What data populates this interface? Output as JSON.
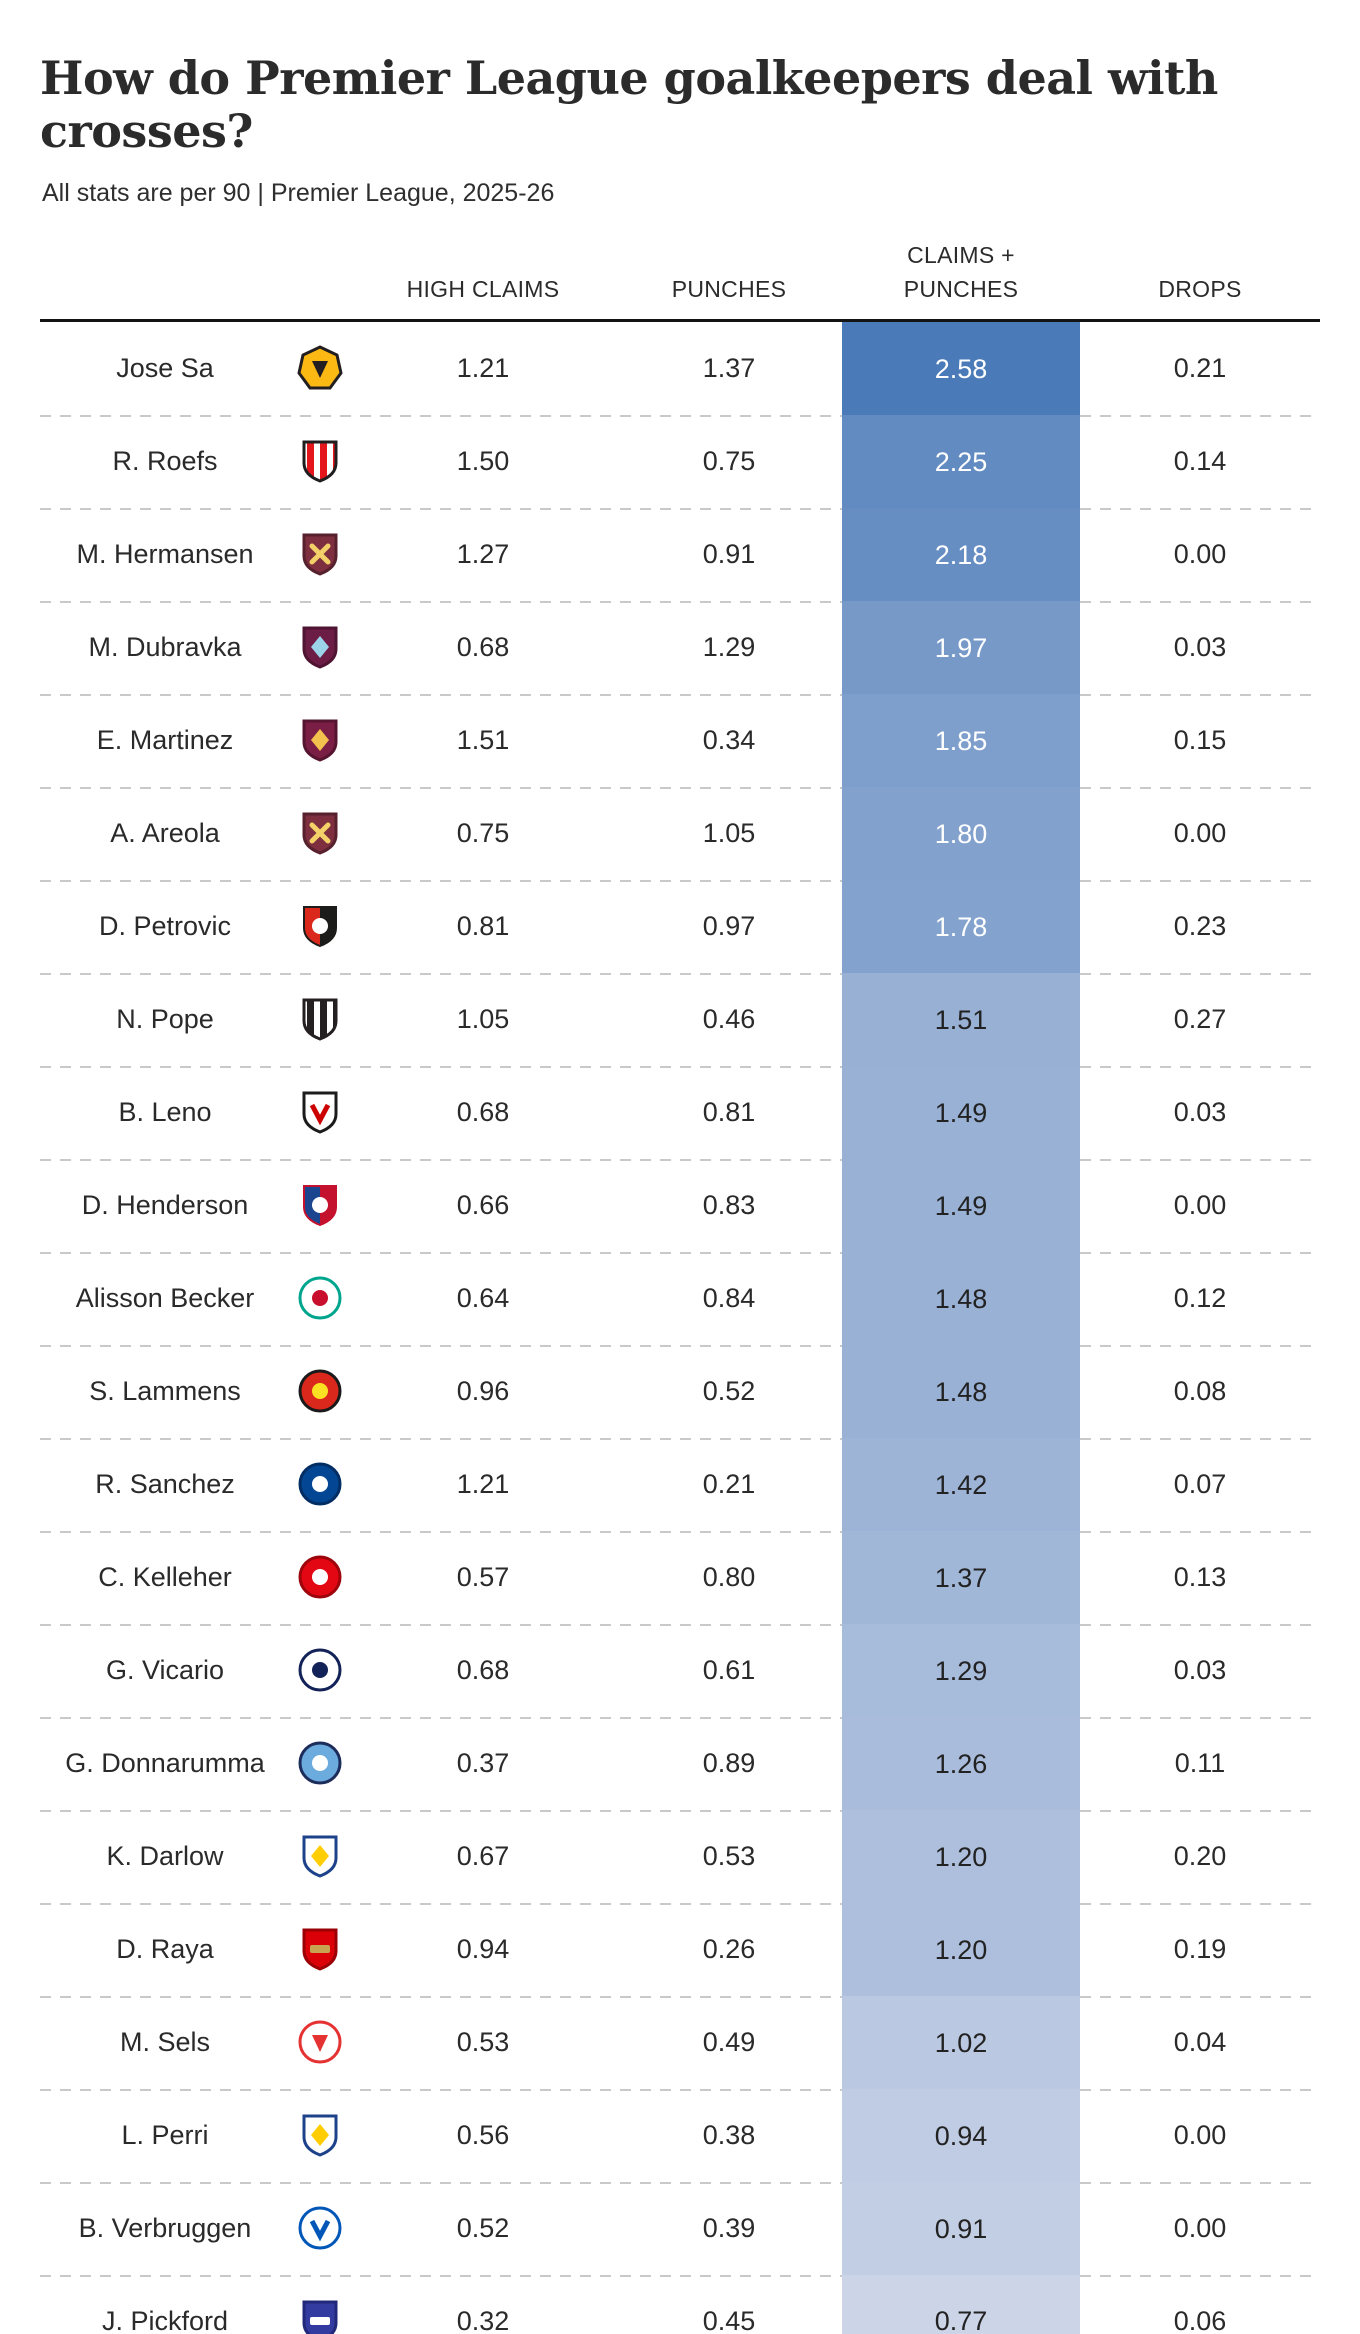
{
  "chart_data": {
    "type": "table",
    "title": "How do Premier League goalkeepers deal with crosses?",
    "subtitle": "All stats are per 90 | Premier League, 2025-26",
    "columns": [
      {
        "id": "high_claims",
        "label": "HIGH CLAIMS"
      },
      {
        "id": "punches",
        "label": "PUNCHES"
      },
      {
        "id": "claims_punches",
        "label": "CLAIMS + PUNCHES",
        "lines": [
          "CLAIMS +",
          "PUNCHES"
        ]
      },
      {
        "id": "drops",
        "label": "DROPS"
      }
    ],
    "highlight_scale": {
      "column": "claims_punches",
      "min_value": 0.77,
      "max_value": 2.58,
      "min_color": "#CCD5E8",
      "max_color": "#4A7AB8",
      "light_text": "#FFFFFF",
      "dark_text": "#222222"
    },
    "rows": [
      {
        "player": "Jose Sa",
        "club": "Wolverhampton Wanderers",
        "high_claims": "1.21",
        "punches": "1.37",
        "claims_punches": "2.58",
        "drops": "0.21",
        "badge": {
          "icon": "wolves-club-badge-icon",
          "kind": "hex",
          "colors": [
            "#FDB913",
            "#231F20",
            "#231F20"
          ],
          "emblem": "triangle"
        }
      },
      {
        "player": "R. Roefs",
        "club": "Sunderland",
        "high_claims": "1.50",
        "punches": "0.75",
        "claims_punches": "2.25",
        "drops": "0.14",
        "badge": {
          "icon": "sunderland-club-badge-icon",
          "kind": "stripes-shield",
          "colors": [
            "#FFFFFF",
            "#211E1F",
            "#E4161C"
          ],
          "emblem": "none"
        }
      },
      {
        "player": "M. Hermansen",
        "club": "West Ham United",
        "high_claims": "1.27",
        "punches": "0.91",
        "claims_punches": "2.18",
        "drops": "0.00",
        "badge": {
          "icon": "west-ham-club-badge-icon",
          "kind": "shield",
          "colors": [
            "#7D2F3F",
            "#56202d",
            "#F3D168"
          ],
          "emblem": "x"
        }
      },
      {
        "player": "M. Dubravka",
        "club": "Burnley",
        "high_claims": "0.68",
        "punches": "1.29",
        "claims_punches": "1.97",
        "drops": "0.03",
        "badge": {
          "icon": "burnley-club-badge-icon",
          "kind": "shield",
          "colors": [
            "#6C1D45",
            "#4f1432",
            "#9BD3E9"
          ],
          "emblem": "diamond"
        }
      },
      {
        "player": "E. Martinez",
        "club": "Aston Villa",
        "high_claims": "1.51",
        "punches": "0.34",
        "claims_punches": "1.85",
        "drops": "0.15",
        "badge": {
          "icon": "aston-villa-club-badge-icon",
          "kind": "shield",
          "colors": [
            "#7A1E45",
            "#551430",
            "#F2C14E"
          ],
          "emblem": "diamond"
        }
      },
      {
        "player": "A. Areola",
        "club": "West Ham United",
        "high_claims": "0.75",
        "punches": "1.05",
        "claims_punches": "1.80",
        "drops": "0.00",
        "badge": {
          "icon": "west-ham-club-badge-icon",
          "kind": "shield",
          "colors": [
            "#7D2F3F",
            "#56202d",
            "#F3D168"
          ],
          "emblem": "x"
        }
      },
      {
        "player": "D. Petrovic",
        "club": "AFC Bournemouth",
        "high_claims": "0.81",
        "punches": "0.97",
        "claims_punches": "1.78",
        "drops": "0.23",
        "badge": {
          "icon": "bournemouth-club-badge-icon",
          "kind": "split-shield",
          "colors": [
            "#DA291C",
            "#1C1C1B",
            "#FFFFFF"
          ],
          "emblem": "dot"
        }
      },
      {
        "player": "N. Pope",
        "club": "Newcastle United",
        "high_claims": "1.05",
        "punches": "0.46",
        "claims_punches": "1.51",
        "drops": "0.27",
        "badge": {
          "icon": "newcastle-club-badge-icon",
          "kind": "stripes-shield",
          "colors": [
            "#FFFFFF",
            "#241F21",
            "#241F21"
          ],
          "emblem": "none"
        }
      },
      {
        "player": "B. Leno",
        "club": "Fulham",
        "high_claims": "0.68",
        "punches": "0.81",
        "claims_punches": "1.49",
        "drops": "0.03",
        "badge": {
          "icon": "fulham-club-badge-icon",
          "kind": "shield",
          "colors": [
            "#FFFFFF",
            "#1B1B1B",
            "#CC0000"
          ],
          "emblem": "v"
        }
      },
      {
        "player": "D. Henderson",
        "club": "Crystal Palace",
        "high_claims": "0.66",
        "punches": "0.83",
        "claims_punches": "1.49",
        "drops": "0.00",
        "badge": {
          "icon": "crystal-palace-club-badge-icon",
          "kind": "split-shield",
          "colors": [
            "#1B458F",
            "#C4122E",
            "#FFFFFF"
          ],
          "emblem": "dot"
        }
      },
      {
        "player": "Alisson Becker",
        "club": "Liverpool",
        "high_claims": "0.64",
        "punches": "0.84",
        "claims_punches": "1.48",
        "drops": "0.12",
        "badge": {
          "icon": "liverpool-club-badge-icon",
          "kind": "circle",
          "colors": [
            "#FFFFFF",
            "#00A58E",
            "#C8102E"
          ],
          "emblem": "dot"
        }
      },
      {
        "player": "S. Lammens",
        "club": "Manchester United",
        "high_claims": "0.96",
        "punches": "0.52",
        "claims_punches": "1.48",
        "drops": "0.08",
        "badge": {
          "icon": "manchester-united-club-badge-icon",
          "kind": "circle",
          "colors": [
            "#DA291C",
            "#1A1A1A",
            "#FBE122"
          ],
          "emblem": "dot"
        }
      },
      {
        "player": "R. Sanchez",
        "club": "Chelsea",
        "high_claims": "1.21",
        "punches": "0.21",
        "claims_punches": "1.42",
        "drops": "0.07",
        "badge": {
          "icon": "chelsea-club-badge-icon",
          "kind": "circle",
          "colors": [
            "#034694",
            "#022E63",
            "#FFFFFF"
          ],
          "emblem": "dot"
        }
      },
      {
        "player": "C. Kelleher",
        "club": "Brentford",
        "high_claims": "0.57",
        "punches": "0.80",
        "claims_punches": "1.37",
        "drops": "0.13",
        "badge": {
          "icon": "brentford-club-badge-icon",
          "kind": "circle",
          "colors": [
            "#E30613",
            "#9E040C",
            "#FFFFFF"
          ],
          "emblem": "dot"
        }
      },
      {
        "player": "G. Vicario",
        "club": "Tottenham Hotspur",
        "high_claims": "0.68",
        "punches": "0.61",
        "claims_punches": "1.29",
        "drops": "0.03",
        "badge": {
          "icon": "tottenham-club-badge-icon",
          "kind": "circle",
          "colors": [
            "#FFFFFF",
            "#132257",
            "#132257"
          ],
          "emblem": "dot"
        }
      },
      {
        "player": "G. Donnarumma",
        "club": "Manchester City",
        "high_claims": "0.37",
        "punches": "0.89",
        "claims_punches": "1.26",
        "drops": "0.11",
        "badge": {
          "icon": "manchester-city-club-badge-icon",
          "kind": "circle",
          "colors": [
            "#6CABDD",
            "#1C2C5B",
            "#FFFFFF"
          ],
          "emblem": "dot"
        }
      },
      {
        "player": "K. Darlow",
        "club": "Leeds United",
        "high_claims": "0.67",
        "punches": "0.53",
        "claims_punches": "1.20",
        "drops": "0.20",
        "badge": {
          "icon": "leeds-united-club-badge-icon",
          "kind": "shield",
          "colors": [
            "#FFFFFF",
            "#1D428A",
            "#FFCD00"
          ],
          "emblem": "diamond"
        }
      },
      {
        "player": "D. Raya",
        "club": "Arsenal",
        "high_claims": "0.94",
        "punches": "0.26",
        "claims_punches": "1.20",
        "drops": "0.19",
        "badge": {
          "icon": "arsenal-club-badge-icon",
          "kind": "shield",
          "colors": [
            "#DB0007",
            "#9B0005",
            "#C8A350"
          ],
          "emblem": "bar"
        }
      },
      {
        "player": "M. Sels",
        "club": "Nottingham Forest",
        "high_claims": "0.53",
        "punches": "0.49",
        "claims_punches": "1.02",
        "drops": "0.04",
        "badge": {
          "icon": "nottingham-forest-club-badge-icon",
          "kind": "circle",
          "colors": [
            "#FFFFFF",
            "#E53233",
            "#E53233"
          ],
          "emblem": "triangle"
        }
      },
      {
        "player": "L. Perri",
        "club": "Leeds United",
        "high_claims": "0.56",
        "punches": "0.38",
        "claims_punches": "0.94",
        "drops": "0.00",
        "badge": {
          "icon": "leeds-united-club-badge-icon",
          "kind": "shield",
          "colors": [
            "#FFFFFF",
            "#1D428A",
            "#FFCD00"
          ],
          "emblem": "diamond"
        }
      },
      {
        "player": "B. Verbruggen",
        "club": "Brighton & Hove Albion",
        "high_claims": "0.52",
        "punches": "0.39",
        "claims_punches": "0.91",
        "drops": "0.00",
        "badge": {
          "icon": "brighton-club-badge-icon",
          "kind": "circle",
          "colors": [
            "#FFFFFF",
            "#0057B8",
            "#0057B8"
          ],
          "emblem": "v"
        }
      },
      {
        "player": "J. Pickford",
        "club": "Everton",
        "high_claims": "0.32",
        "punches": "0.45",
        "claims_punches": "0.77",
        "drops": "0.06",
        "badge": {
          "icon": "everton-club-badge-icon",
          "kind": "shield",
          "colors": [
            "#333AA0",
            "#23297A",
            "#FFFFFF"
          ],
          "emblem": "bar"
        }
      }
    ]
  }
}
